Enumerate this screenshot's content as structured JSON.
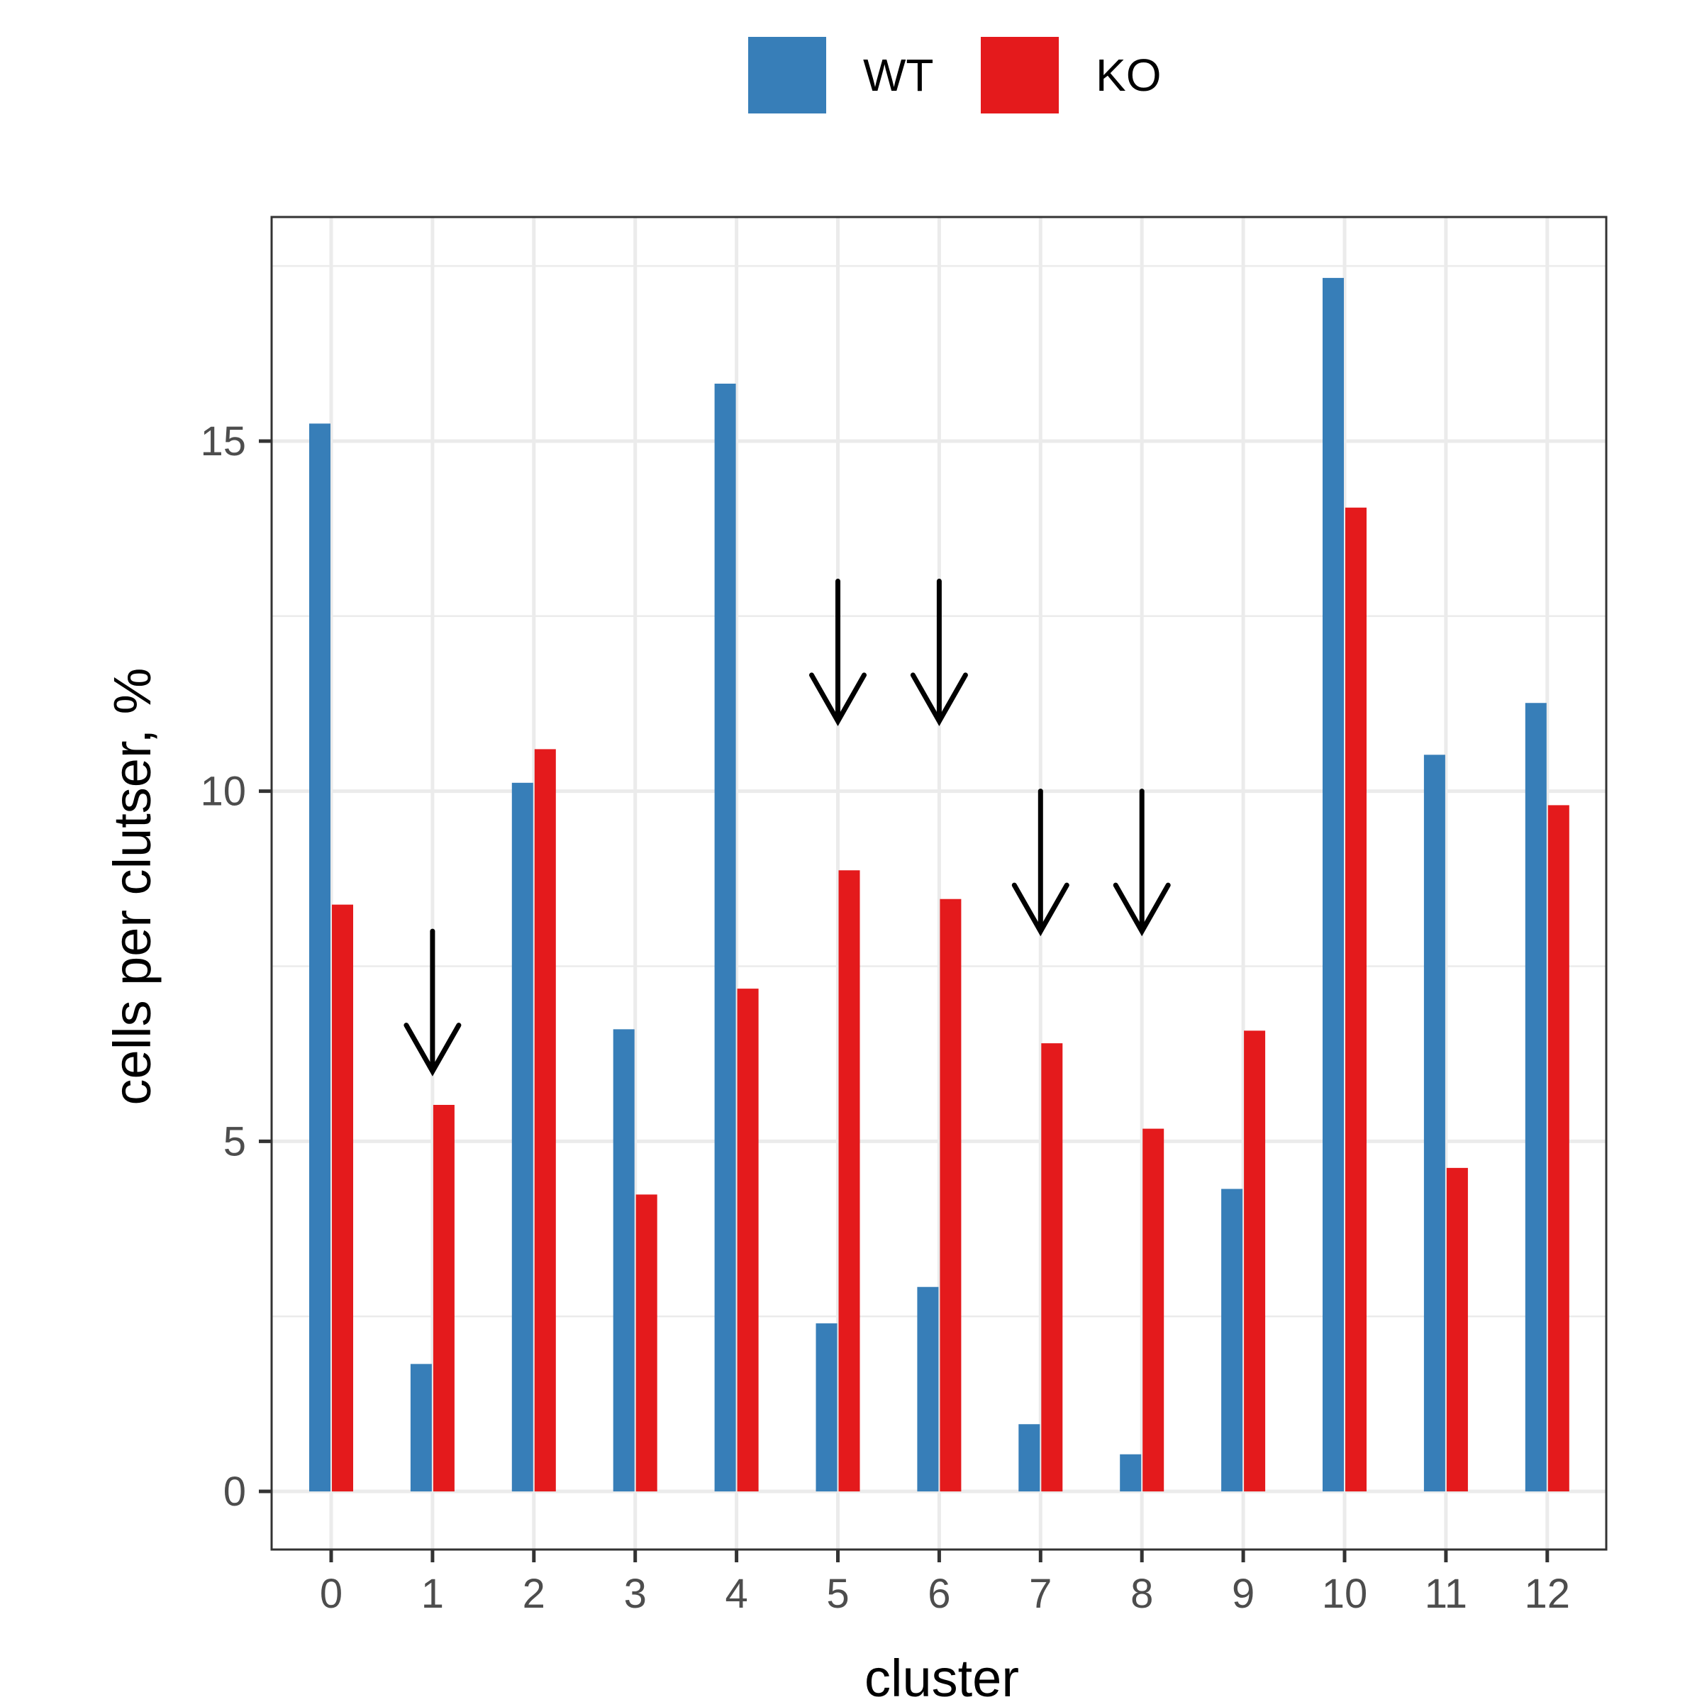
{
  "chart_data": {
    "type": "bar",
    "categories": [
      "0",
      "1",
      "2",
      "3",
      "4",
      "5",
      "6",
      "7",
      "8",
      "9",
      "10",
      "11",
      "12"
    ],
    "series": [
      {
        "name": "WT",
        "color": "#377EB8",
        "values": [
          15.25,
          1.82,
          10.12,
          6.6,
          15.82,
          2.4,
          2.92,
          0.96,
          0.53,
          4.32,
          17.33,
          10.52,
          11.26
        ]
      },
      {
        "name": "KO",
        "color": "#E41A1C",
        "values": [
          8.38,
          5.52,
          10.6,
          4.24,
          7.18,
          8.87,
          8.46,
          6.4,
          5.18,
          6.58,
          14.05,
          4.62,
          9.8
        ]
      }
    ],
    "xlabel": "cluster",
    "ylabel": "cells per clutser, %",
    "ylim": [
      -0.83,
      18.2
    ],
    "yticks": [
      0,
      5,
      10,
      15
    ],
    "xticks": [
      "0",
      "1",
      "2",
      "3",
      "4",
      "5",
      "6",
      "7",
      "8",
      "9",
      "10",
      "11",
      "12"
    ],
    "grid": true,
    "legend_position": "top",
    "annotations": [
      {
        "type": "arrow-down",
        "category": "1",
        "from_y": 8.0,
        "to_y": 6.0
      },
      {
        "type": "arrow-down",
        "category": "5",
        "from_y": 13.0,
        "to_y": 11.0
      },
      {
        "type": "arrow-down",
        "category": "6",
        "from_y": 13.0,
        "to_y": 11.0
      },
      {
        "type": "arrow-down",
        "category": "7",
        "from_y": 10.0,
        "to_y": 8.0
      },
      {
        "type": "arrow-down",
        "category": "8",
        "from_y": 10.0,
        "to_y": 8.0
      }
    ]
  }
}
